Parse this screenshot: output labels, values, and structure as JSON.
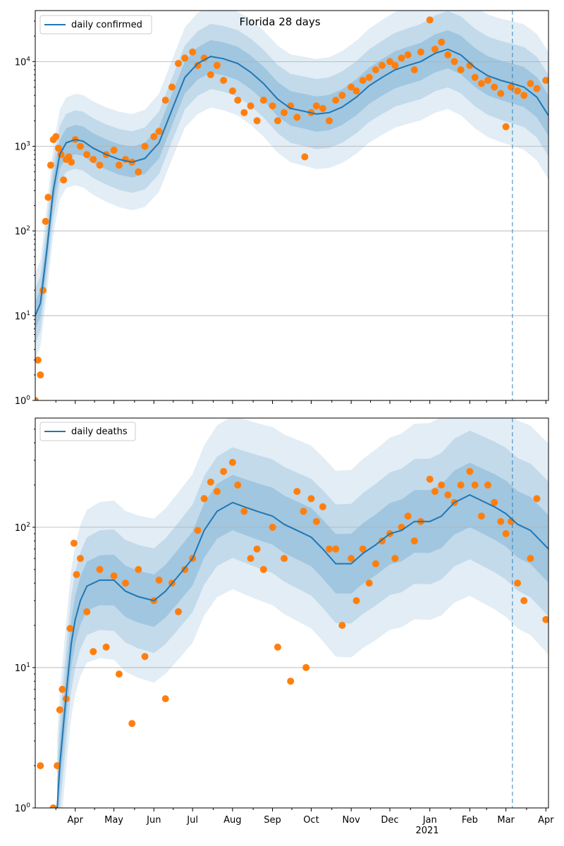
{
  "chart_data": [
    {
      "type": "scatter",
      "title": "Florida 28 days",
      "yscale": "log",
      "ylim": [
        1,
        40000
      ],
      "yticks": [
        1,
        10,
        100,
        1000,
        10000
      ],
      "ytick_labels": [
        "10^0",
        "10^1",
        "10^2",
        "10^3",
        "10^4"
      ],
      "xlim": [
        "2020-03-01",
        "2021-04-03"
      ],
      "xticks": [
        "2020-04-01",
        "2020-05-01",
        "2020-06-01",
        "2020-07-01",
        "2020-08-01",
        "2020-09-01",
        "2020-10-01",
        "2020-11-01",
        "2020-12-01",
        "2021-01-01",
        "2021-02-01",
        "2021-03-01",
        "2021-04-01"
      ],
      "xtick_labels": [
        "Apr",
        "May",
        "Jun",
        "Jul",
        "Aug",
        "Sep",
        "Oct",
        "Nov",
        "Dec",
        "Jan",
        "Feb",
        "Mar",
        "Apr"
      ],
      "grid": "y-major",
      "legend": {
        "placement": "top-left",
        "entries": [
          "daily confirmed"
        ]
      },
      "forecast_line": "2021-03-06",
      "colors": {
        "line": "#1f77b4",
        "points": "#ff7f0e",
        "band": "#1f77b4"
      },
      "series": [
        {
          "name": "daily confirmed",
          "kind": "line",
          "x": [
            "2020-03-01",
            "2020-03-05",
            "2020-03-10",
            "2020-03-15",
            "2020-03-20",
            "2020-03-25",
            "2020-04-01",
            "2020-04-07",
            "2020-04-15",
            "2020-04-25",
            "2020-05-05",
            "2020-05-15",
            "2020-05-25",
            "2020-06-05",
            "2020-06-15",
            "2020-06-25",
            "2020-07-05",
            "2020-07-15",
            "2020-07-25",
            "2020-08-05",
            "2020-08-15",
            "2020-08-25",
            "2020-09-05",
            "2020-09-15",
            "2020-09-25",
            "2020-10-05",
            "2020-10-15",
            "2020-10-25",
            "2020-11-05",
            "2020-11-15",
            "2020-11-25",
            "2020-12-05",
            "2020-12-15",
            "2020-12-25",
            "2021-01-05",
            "2021-01-15",
            "2021-01-25",
            "2021-02-05",
            "2021-02-15",
            "2021-02-25",
            "2021-03-06",
            "2021-03-15",
            "2021-03-25",
            "2021-04-03"
          ],
          "y": [
            10,
            14,
            60,
            300,
            800,
            1100,
            1200,
            1150,
            950,
            800,
            700,
            650,
            720,
            1100,
            2700,
            6500,
            9500,
            11500,
            10800,
            9500,
            7500,
            5500,
            3600,
            2800,
            2600,
            2400,
            2500,
            2900,
            3800,
            5200,
            6500,
            8000,
            9000,
            10000,
            12500,
            14000,
            12000,
            8500,
            6800,
            6000,
            5500,
            5000,
            3800,
            2300
          ]
        },
        {
          "name": "observed",
          "kind": "points",
          "x": [
            "2020-03-01",
            "2020-03-03",
            "2020-03-05",
            "2020-03-07",
            "2020-03-09",
            "2020-03-11",
            "2020-03-13",
            "2020-03-15",
            "2020-03-17",
            "2020-03-19",
            "2020-03-21",
            "2020-03-23",
            "2020-03-25",
            "2020-03-27",
            "2020-03-29",
            "2020-04-01",
            "2020-04-05",
            "2020-04-10",
            "2020-04-15",
            "2020-04-20",
            "2020-04-25",
            "2020-05-01",
            "2020-05-05",
            "2020-05-10",
            "2020-05-15",
            "2020-05-20",
            "2020-05-25",
            "2020-06-01",
            "2020-06-05",
            "2020-06-10",
            "2020-06-15",
            "2020-06-20",
            "2020-06-25",
            "2020-07-01",
            "2020-07-05",
            "2020-07-10",
            "2020-07-15",
            "2020-07-20",
            "2020-07-25",
            "2020-08-01",
            "2020-08-05",
            "2020-08-10",
            "2020-08-15",
            "2020-08-20",
            "2020-08-25",
            "2020-09-01",
            "2020-09-05",
            "2020-09-10",
            "2020-09-15",
            "2020-09-20",
            "2020-09-26",
            "2020-10-01",
            "2020-10-05",
            "2020-10-10",
            "2020-10-15",
            "2020-10-20",
            "2020-10-25",
            "2020-11-01",
            "2020-11-05",
            "2020-11-10",
            "2020-11-15",
            "2020-11-20",
            "2020-11-25",
            "2020-12-01",
            "2020-12-05",
            "2020-12-10",
            "2020-12-15",
            "2020-12-20",
            "2020-12-25",
            "2021-01-01",
            "2021-01-05",
            "2021-01-10",
            "2021-01-15",
            "2021-01-20",
            "2021-01-25",
            "2021-02-01",
            "2021-02-05",
            "2021-02-10",
            "2021-02-15",
            "2021-02-20",
            "2021-02-25",
            "2021-03-01",
            "2021-03-05",
            "2021-03-10",
            "2021-03-15",
            "2021-03-20",
            "2021-03-25",
            "2021-04-01"
          ],
          "y": [
            1,
            3,
            2,
            20,
            130,
            250,
            600,
            1200,
            1300,
            950,
            800,
            400,
            700,
            750,
            650,
            1200,
            1000,
            800,
            700,
            600,
            800,
            900,
            600,
            700,
            650,
            500,
            1000,
            1300,
            1500,
            3500,
            5000,
            9500,
            11000,
            13000,
            9000,
            11000,
            7000,
            9000,
            6000,
            4500,
            3500,
            2500,
            3000,
            2000,
            3500,
            3000,
            2000,
            2500,
            3000,
            2200,
            750,
            2500,
            3000,
            2800,
            2000,
            3500,
            4000,
            5000,
            4500,
            6000,
            6500,
            8000,
            9000,
            10000,
            9000,
            11000,
            12000,
            8000,
            13000,
            31000,
            14000,
            17000,
            12000,
            10000,
            8000,
            9000,
            6500,
            5500,
            6000,
            5000,
            4200,
            1700,
            5000,
            4500,
            4000,
            5500,
            4800,
            6000
          ]
        }
      ]
    },
    {
      "type": "scatter",
      "yscale": "log",
      "ylim": [
        1,
        600
      ],
      "yticks": [
        1,
        10,
        100
      ],
      "ytick_labels": [
        "10^0",
        "10^1",
        "10^2"
      ],
      "xlim": [
        "2020-03-01",
        "2021-04-03"
      ],
      "xticks": [
        "2020-04-01",
        "2020-05-01",
        "2020-06-01",
        "2020-07-01",
        "2020-08-01",
        "2020-09-01",
        "2020-10-01",
        "2020-11-01",
        "2020-12-01",
        "2021-01-01",
        "2021-02-01",
        "2021-03-01",
        "2021-04-01"
      ],
      "xtick_labels": [
        "Apr",
        "May",
        "Jun",
        "Jul",
        "Aug",
        "Sep",
        "Oct",
        "Nov",
        "Dec",
        "Jan",
        "Feb",
        "Mar",
        "Apr"
      ],
      "year_label": "2021",
      "grid": "y-major",
      "legend": {
        "placement": "top-left",
        "entries": [
          "daily deaths"
        ]
      },
      "forecast_line": "2021-03-06",
      "colors": {
        "line": "#1f77b4",
        "points": "#ff7f0e",
        "band": "#1f77b4"
      },
      "series": [
        {
          "name": "daily deaths",
          "kind": "line",
          "x": [
            "2020-03-18",
            "2020-03-20",
            "2020-03-23",
            "2020-03-26",
            "2020-03-29",
            "2020-04-01",
            "2020-04-05",
            "2020-04-10",
            "2020-04-15",
            "2020-04-20",
            "2020-04-25",
            "2020-05-01",
            "2020-05-10",
            "2020-05-20",
            "2020-06-01",
            "2020-06-10",
            "2020-06-20",
            "2020-07-01",
            "2020-07-10",
            "2020-07-20",
            "2020-08-01",
            "2020-08-10",
            "2020-08-20",
            "2020-09-01",
            "2020-09-10",
            "2020-09-20",
            "2020-10-01",
            "2020-10-10",
            "2020-10-20",
            "2020-11-01",
            "2020-11-10",
            "2020-11-20",
            "2020-12-01",
            "2020-12-10",
            "2020-12-20",
            "2021-01-01",
            "2021-01-10",
            "2021-01-20",
            "2021-02-01",
            "2021-02-10",
            "2021-02-20",
            "2021-03-01",
            "2021-03-10",
            "2021-03-20",
            "2021-04-03"
          ],
          "y": [
            1,
            2,
            4,
            8,
            15,
            22,
            30,
            38,
            40,
            42,
            42,
            42,
            35,
            32,
            30,
            35,
            45,
            60,
            95,
            130,
            150,
            140,
            130,
            120,
            105,
            95,
            85,
            70,
            55,
            55,
            65,
            75,
            90,
            95,
            110,
            110,
            120,
            150,
            170,
            155,
            140,
            125,
            105,
            95,
            70
          ]
        },
        {
          "name": "observed",
          "kind": "points",
          "x": [
            "2020-03-05",
            "2020-03-15",
            "2020-03-18",
            "2020-03-20",
            "2020-03-22",
            "2020-03-25",
            "2020-03-28",
            "2020-03-31",
            "2020-04-02",
            "2020-04-05",
            "2020-04-10",
            "2020-04-15",
            "2020-04-20",
            "2020-04-25",
            "2020-05-01",
            "2020-05-05",
            "2020-05-10",
            "2020-05-15",
            "2020-05-20",
            "2020-05-25",
            "2020-06-01",
            "2020-06-05",
            "2020-06-10",
            "2020-06-15",
            "2020-06-20",
            "2020-06-25",
            "2020-07-01",
            "2020-07-05",
            "2020-07-10",
            "2020-07-15",
            "2020-07-20",
            "2020-07-25",
            "2020-08-01",
            "2020-08-05",
            "2020-08-10",
            "2020-08-15",
            "2020-08-20",
            "2020-08-25",
            "2020-09-01",
            "2020-09-05",
            "2020-09-10",
            "2020-09-15",
            "2020-09-20",
            "2020-09-25",
            "2020-09-27",
            "2020-10-01",
            "2020-10-05",
            "2020-10-10",
            "2020-10-15",
            "2020-10-20",
            "2020-10-25",
            "2020-11-01",
            "2020-11-05",
            "2020-11-10",
            "2020-11-15",
            "2020-11-20",
            "2020-11-25",
            "2020-12-01",
            "2020-12-05",
            "2020-12-10",
            "2020-12-15",
            "2020-12-20",
            "2020-12-25",
            "2021-01-01",
            "2021-01-05",
            "2021-01-10",
            "2021-01-15",
            "2021-01-20",
            "2021-01-25",
            "2021-02-01",
            "2021-02-05",
            "2021-02-10",
            "2021-02-15",
            "2021-02-20",
            "2021-02-25",
            "2021-03-01",
            "2021-03-05",
            "2021-03-10",
            "2021-03-15",
            "2021-03-20",
            "2021-03-25",
            "2021-04-01"
          ],
          "y": [
            2,
            1,
            2,
            5,
            7,
            6,
            19,
            77,
            46,
            60,
            25,
            13,
            50,
            14,
            45,
            9,
            40,
            4,
            50,
            12,
            30,
            42,
            6,
            40,
            25,
            50,
            60,
            95,
            160,
            210,
            180,
            250,
            290,
            200,
            130,
            60,
            70,
            50,
            100,
            14,
            60,
            8,
            180,
            130,
            10,
            160,
            110,
            140,
            70,
            70,
            20,
            60,
            30,
            70,
            40,
            55,
            80,
            90,
            60,
            100,
            120,
            80,
            110,
            220,
            180,
            200,
            170,
            150,
            200,
            250,
            200,
            120,
            200,
            150,
            110,
            90,
            110,
            40,
            30,
            60,
            160,
            22
          ]
        }
      ]
    }
  ]
}
